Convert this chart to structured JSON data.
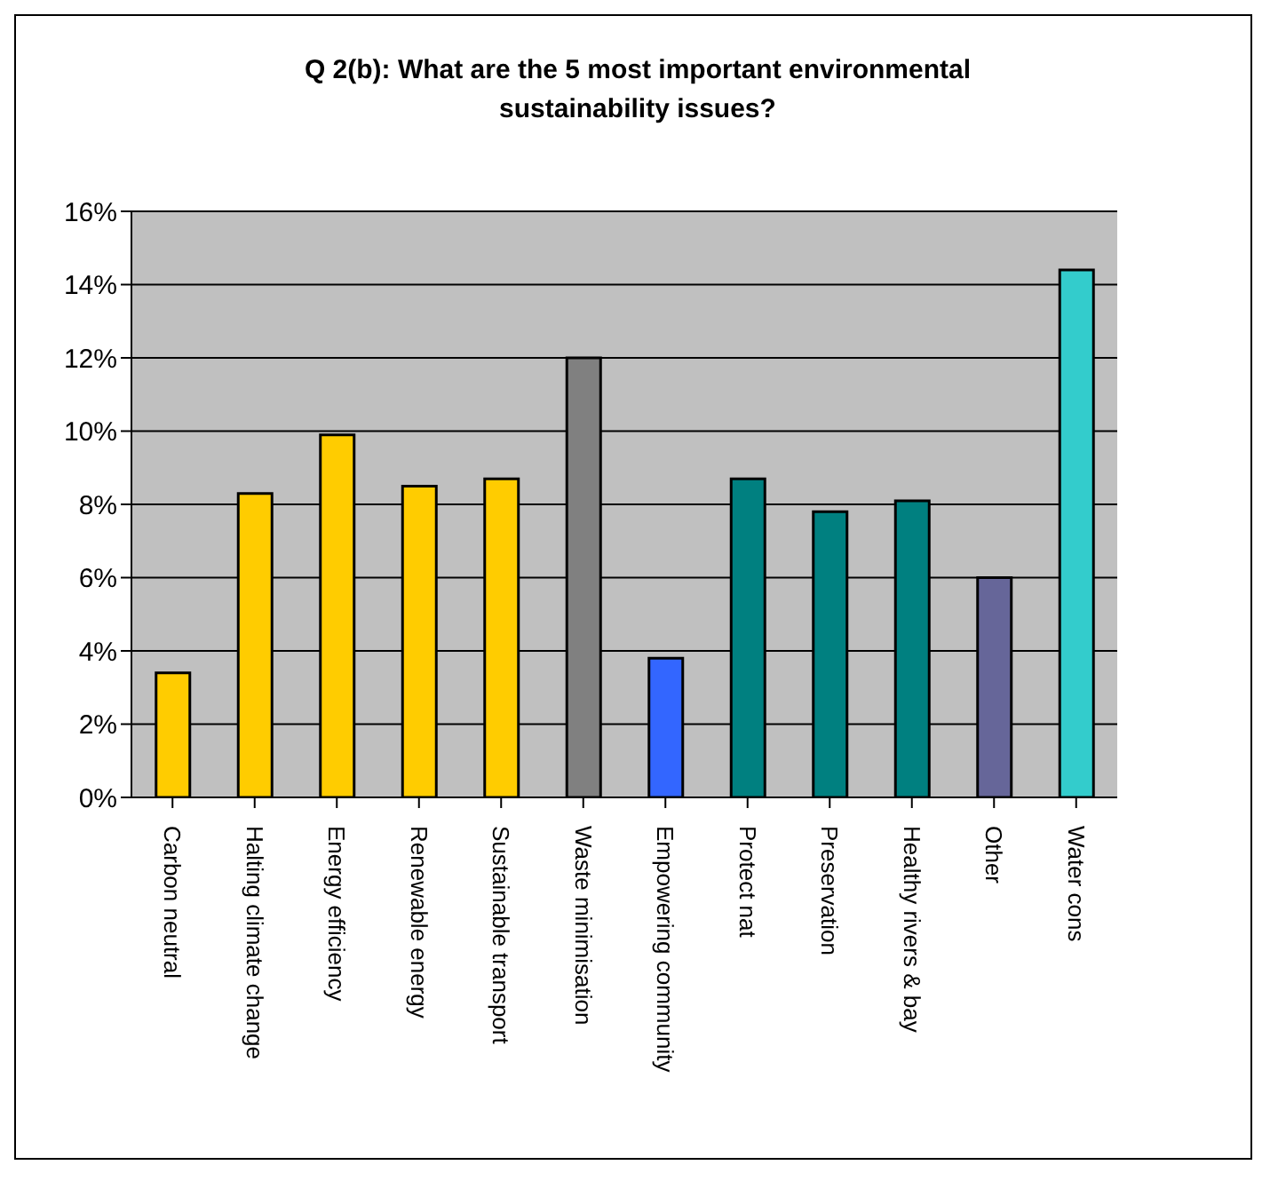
{
  "chart_data": {
    "type": "bar",
    "title": "Q 2(b): What are the 5 most important environmental sustainability issues?",
    "categories": [
      "Carbon neutral",
      "Halting climate change",
      "Energy efficiency",
      "Renewable energy",
      "Sustainable transport",
      "Waste minimisation",
      "Empowering community",
      "Protect nat",
      "Preservation",
      "Healthy rivers & bay",
      "Other",
      "Water cons"
    ],
    "values": [
      3.4,
      8.3,
      9.9,
      8.5,
      8.7,
      12.0,
      3.8,
      8.7,
      7.8,
      8.1,
      6.0,
      14.4
    ],
    "colors": [
      "#ffcc00",
      "#ffcc00",
      "#ffcc00",
      "#ffcc00",
      "#ffcc00",
      "#808080",
      "#3366ff",
      "#008080",
      "#008080",
      "#008080",
      "#666699",
      "#33cccc"
    ],
    "ylim": [
      0,
      16
    ],
    "yticks": [
      {
        "value": 0,
        "label": "0%"
      },
      {
        "value": 2,
        "label": "2%"
      },
      {
        "value": 4,
        "label": "4%"
      },
      {
        "value": 6,
        "label": "6%"
      },
      {
        "value": 8,
        "label": "8%"
      },
      {
        "value": 10,
        "label": "10%"
      },
      {
        "value": 12,
        "label": "12%"
      },
      {
        "value": 14,
        "label": "14%"
      },
      {
        "value": 16,
        "label": "16%"
      }
    ],
    "grid": "y",
    "legend": false
  }
}
